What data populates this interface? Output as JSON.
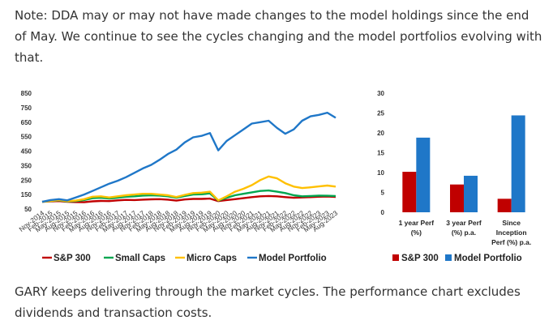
{
  "text": {
    "intro": "Note: DDA may or may not have made changes to the model holdings since the end of May. We continue to see the cycles changing and the model portfolios evolving with that.",
    "outro": "GARY keeps delivering through the market cycles. The performance chart excludes dividends and transaction costs."
  },
  "chart_data": [
    {
      "type": "line",
      "title": "",
      "xlabel": "",
      "ylabel": "",
      "ylim": [
        50,
        850
      ],
      "yticks": [
        50,
        150,
        250,
        350,
        450,
        550,
        650,
        750,
        850
      ],
      "grid": false,
      "legend_position": "bottom",
      "x": [
        "Nov-2014",
        "Feb-2015",
        "May-2015",
        "Aug-2015",
        "Nov-2015",
        "Feb-2016",
        "May-2016",
        "Aug-2016",
        "Nov-2016",
        "Feb-2017",
        "May-2017",
        "Aug-2017",
        "Nov-2017",
        "Feb-2018",
        "May-2018",
        "Aug-2018",
        "Nov-2018",
        "Feb-2019",
        "May-2019",
        "Aug-2019",
        "Nov-2019",
        "Feb-2020",
        "May-2020",
        "Aug-2020",
        "Nov-2020",
        "Feb-2021",
        "May-2021",
        "Aug-2021",
        "Nov-2021",
        "Feb-2022",
        "May-2022",
        "Aug-2022",
        "Nov-2022",
        "Feb-2023",
        "May-2023",
        "Aug-2023"
      ],
      "series": [
        {
          "name": "S&P 300",
          "color": "#c00000",
          "values": [
            100,
            103,
            105,
            100,
            98,
            97,
            103,
            106,
            105,
            110,
            113,
            112,
            115,
            117,
            118,
            115,
            108,
            116,
            120,
            120,
            122,
            105,
            112,
            118,
            125,
            132,
            138,
            140,
            138,
            132,
            128,
            130,
            132,
            135,
            136,
            134
          ]
        },
        {
          "name": "Small Caps",
          "color": "#00a650",
          "values": [
            100,
            105,
            110,
            102,
            105,
            112,
            125,
            128,
            122,
            128,
            135,
            138,
            143,
            145,
            143,
            138,
            128,
            140,
            150,
            152,
            158,
            108,
            128,
            145,
            155,
            165,
            175,
            178,
            170,
            160,
            145,
            138,
            140,
            143,
            142,
            140
          ]
        },
        {
          "name": "Micro Caps",
          "color": "#ffc000",
          "values": [
            100,
            106,
            112,
            104,
            108,
            118,
            135,
            138,
            130,
            138,
            145,
            150,
            155,
            155,
            150,
            145,
            133,
            148,
            160,
            163,
            170,
            110,
            138,
            170,
            190,
            215,
            250,
            275,
            262,
            228,
            205,
            195,
            200,
            206,
            212,
            205
          ]
        },
        {
          "name": "Model Portfolio",
          "color": "#1f77c8",
          "values": [
            100,
            112,
            118,
            110,
            130,
            150,
            175,
            200,
            225,
            245,
            270,
            300,
            330,
            355,
            390,
            430,
            460,
            510,
            545,
            555,
            575,
            455,
            520,
            560,
            600,
            640,
            650,
            660,
            610,
            570,
            600,
            660,
            690,
            700,
            715,
            680
          ]
        }
      ]
    },
    {
      "type": "bar",
      "title": "",
      "xlabel": "",
      "ylabel": "",
      "ylim": [
        0,
        30
      ],
      "yticks": [
        0,
        5,
        10,
        15,
        20,
        25,
        30
      ],
      "grid": false,
      "legend_position": "bottom",
      "categories": [
        [
          "1 year Perf",
          "(%)"
        ],
        [
          "3 year Perf",
          "(%) p.a."
        ],
        [
          "Since",
          "Inception",
          "Perf (%) p.a."
        ]
      ],
      "series": [
        {
          "name": "S&P 300",
          "color": "#c00000",
          "values": [
            10.2,
            7.0,
            3.4
          ]
        },
        {
          "name": "Model Portfolio",
          "color": "#1f77c8",
          "values": [
            18.8,
            9.2,
            24.4
          ]
        }
      ]
    }
  ]
}
